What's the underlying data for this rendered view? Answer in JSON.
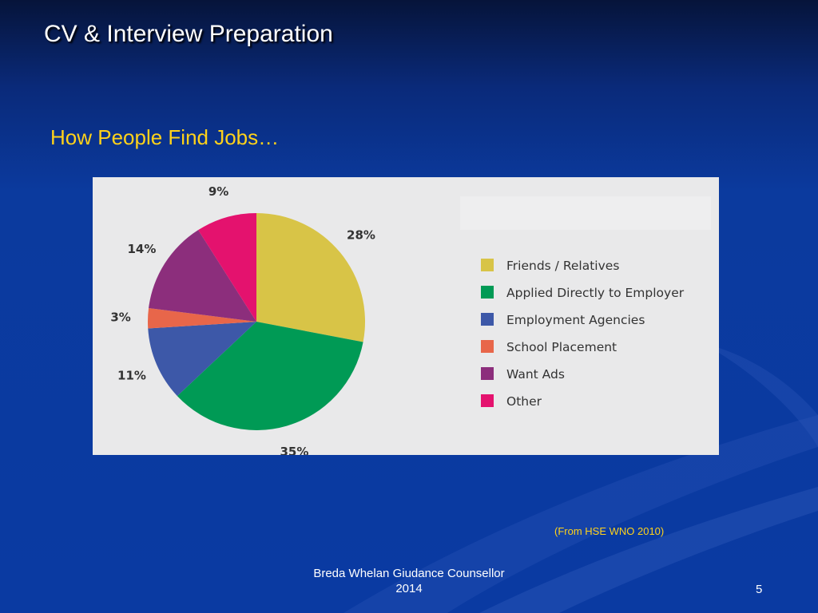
{
  "slide": {
    "title": "CV & Interview Preparation",
    "subtitle": "How People Find Jobs…",
    "source": "(From HSE WNO 2010)",
    "footer_line1": "Breda Whelan Giudance Counsellor",
    "footer_line2": "2014",
    "page_number": "5"
  },
  "colors": {
    "background": "#0b3a9e",
    "title": "#ffffff",
    "subtitle": "#ffd21a",
    "chart_panel": "#e9e9ea"
  },
  "chart_data": {
    "type": "pie",
    "title": "",
    "legend_position": "right",
    "slices": [
      {
        "label": "Friends / Relatives",
        "value": 28,
        "value_label": "28%",
        "color": "#d8c447"
      },
      {
        "label": "Applied Directly to Employer",
        "value": 35,
        "value_label": "35%",
        "color": "#009a55"
      },
      {
        "label": "Employment Agencies",
        "value": 11,
        "value_label": "11%",
        "color": "#3d58a8"
      },
      {
        "label": "School Placement",
        "value": 3,
        "value_label": "3%",
        "color": "#e8664a"
      },
      {
        "label": "Want Ads",
        "value": 14,
        "value_label": "14%",
        "color": "#8c2e7c"
      },
      {
        "label": "Other",
        "value": 9,
        "value_label": "9%",
        "color": "#e4126e"
      }
    ]
  }
}
